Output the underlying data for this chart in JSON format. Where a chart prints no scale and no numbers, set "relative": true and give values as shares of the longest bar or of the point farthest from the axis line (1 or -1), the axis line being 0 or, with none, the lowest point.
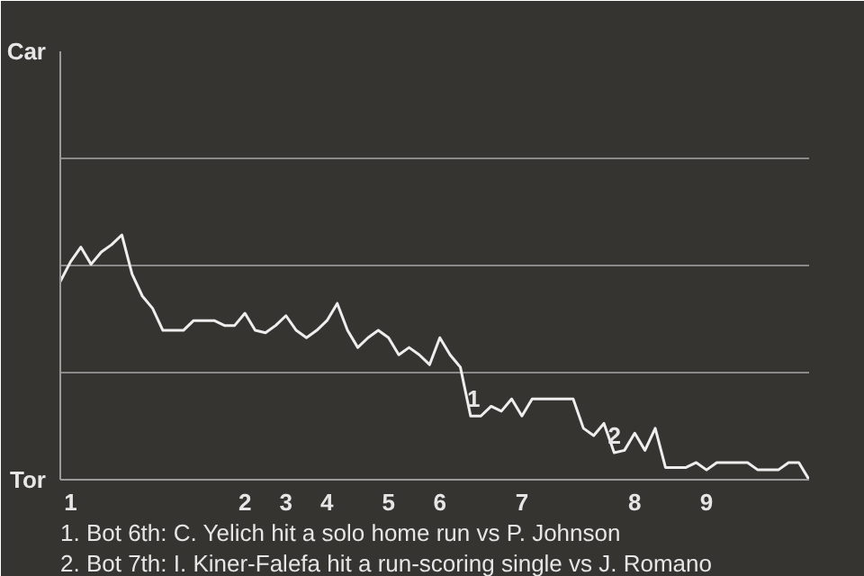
{
  "chart_data": {
    "type": "line",
    "relative": true,
    "categories": [
      null,
      "1",
      null,
      null,
      null,
      null,
      null,
      null,
      null,
      null,
      null,
      null,
      null,
      null,
      null,
      null,
      null,
      null,
      "2",
      null,
      null,
      null,
      "3",
      null,
      null,
      null,
      "4",
      null,
      null,
      null,
      null,
      null,
      "5",
      null,
      null,
      null,
      null,
      "6",
      null,
      null,
      null,
      null,
      null,
      null,
      null,
      "7",
      null,
      null,
      null,
      null,
      null,
      null,
      null,
      null,
      null,
      null,
      "8",
      null,
      null,
      null,
      null,
      null,
      null,
      "9",
      null,
      null,
      null,
      null,
      null,
      null,
      null,
      null,
      null,
      null
    ],
    "series": [
      {
        "color": "#eeeeee",
        "values": [
          0.81,
          0.89,
          0.95,
          0.88,
          0.93,
          0.96,
          1,
          0.84,
          0.75,
          0.7,
          0.61,
          0.61,
          0.61,
          0.65,
          0.65,
          0.65,
          0.63,
          0.63,
          0.68,
          0.61,
          0.6,
          0.63,
          0.67,
          0.61,
          0.58,
          0.61,
          0.65,
          0.72,
          0.61,
          0.54,
          0.58,
          0.61,
          0.58,
          0.51,
          0.54,
          0.51,
          0.47,
          0.58,
          0.51,
          0.46,
          0.26,
          0.26,
          0.3,
          0.28,
          0.33,
          0.26,
          0.33,
          0.33,
          0.33,
          0.33,
          0.33,
          0.21,
          0.18,
          0.23,
          0.11,
          0.12,
          0.19,
          0.12,
          0.21,
          0.05,
          0.05,
          0.05,
          0.07,
          0.04,
          0.07,
          0.07,
          0.07,
          0.07,
          0.04,
          0.04,
          0.04,
          0.07,
          0.07,
          0
        ]
      }
    ],
    "ref_lines": [
      {
        "axis": "y",
        "value": 0.4375,
        "color": "#8a8a8a"
      },
      {
        "axis": "y",
        "value": 0.875,
        "color": "#8a8a8a"
      },
      {
        "axis": "y",
        "value": 1.3125,
        "color": "#8a8a8a"
      }
    ],
    "annotations": [
      "Car",
      "Tor",
      "1",
      "2",
      "1. Bot 6th: C. Yelich hit a solo home run vs P. Johnson",
      "2. Bot 7th: I. Kiner-Falefa hit a run-scoring single vs J. Romano"
    ]
  }
}
